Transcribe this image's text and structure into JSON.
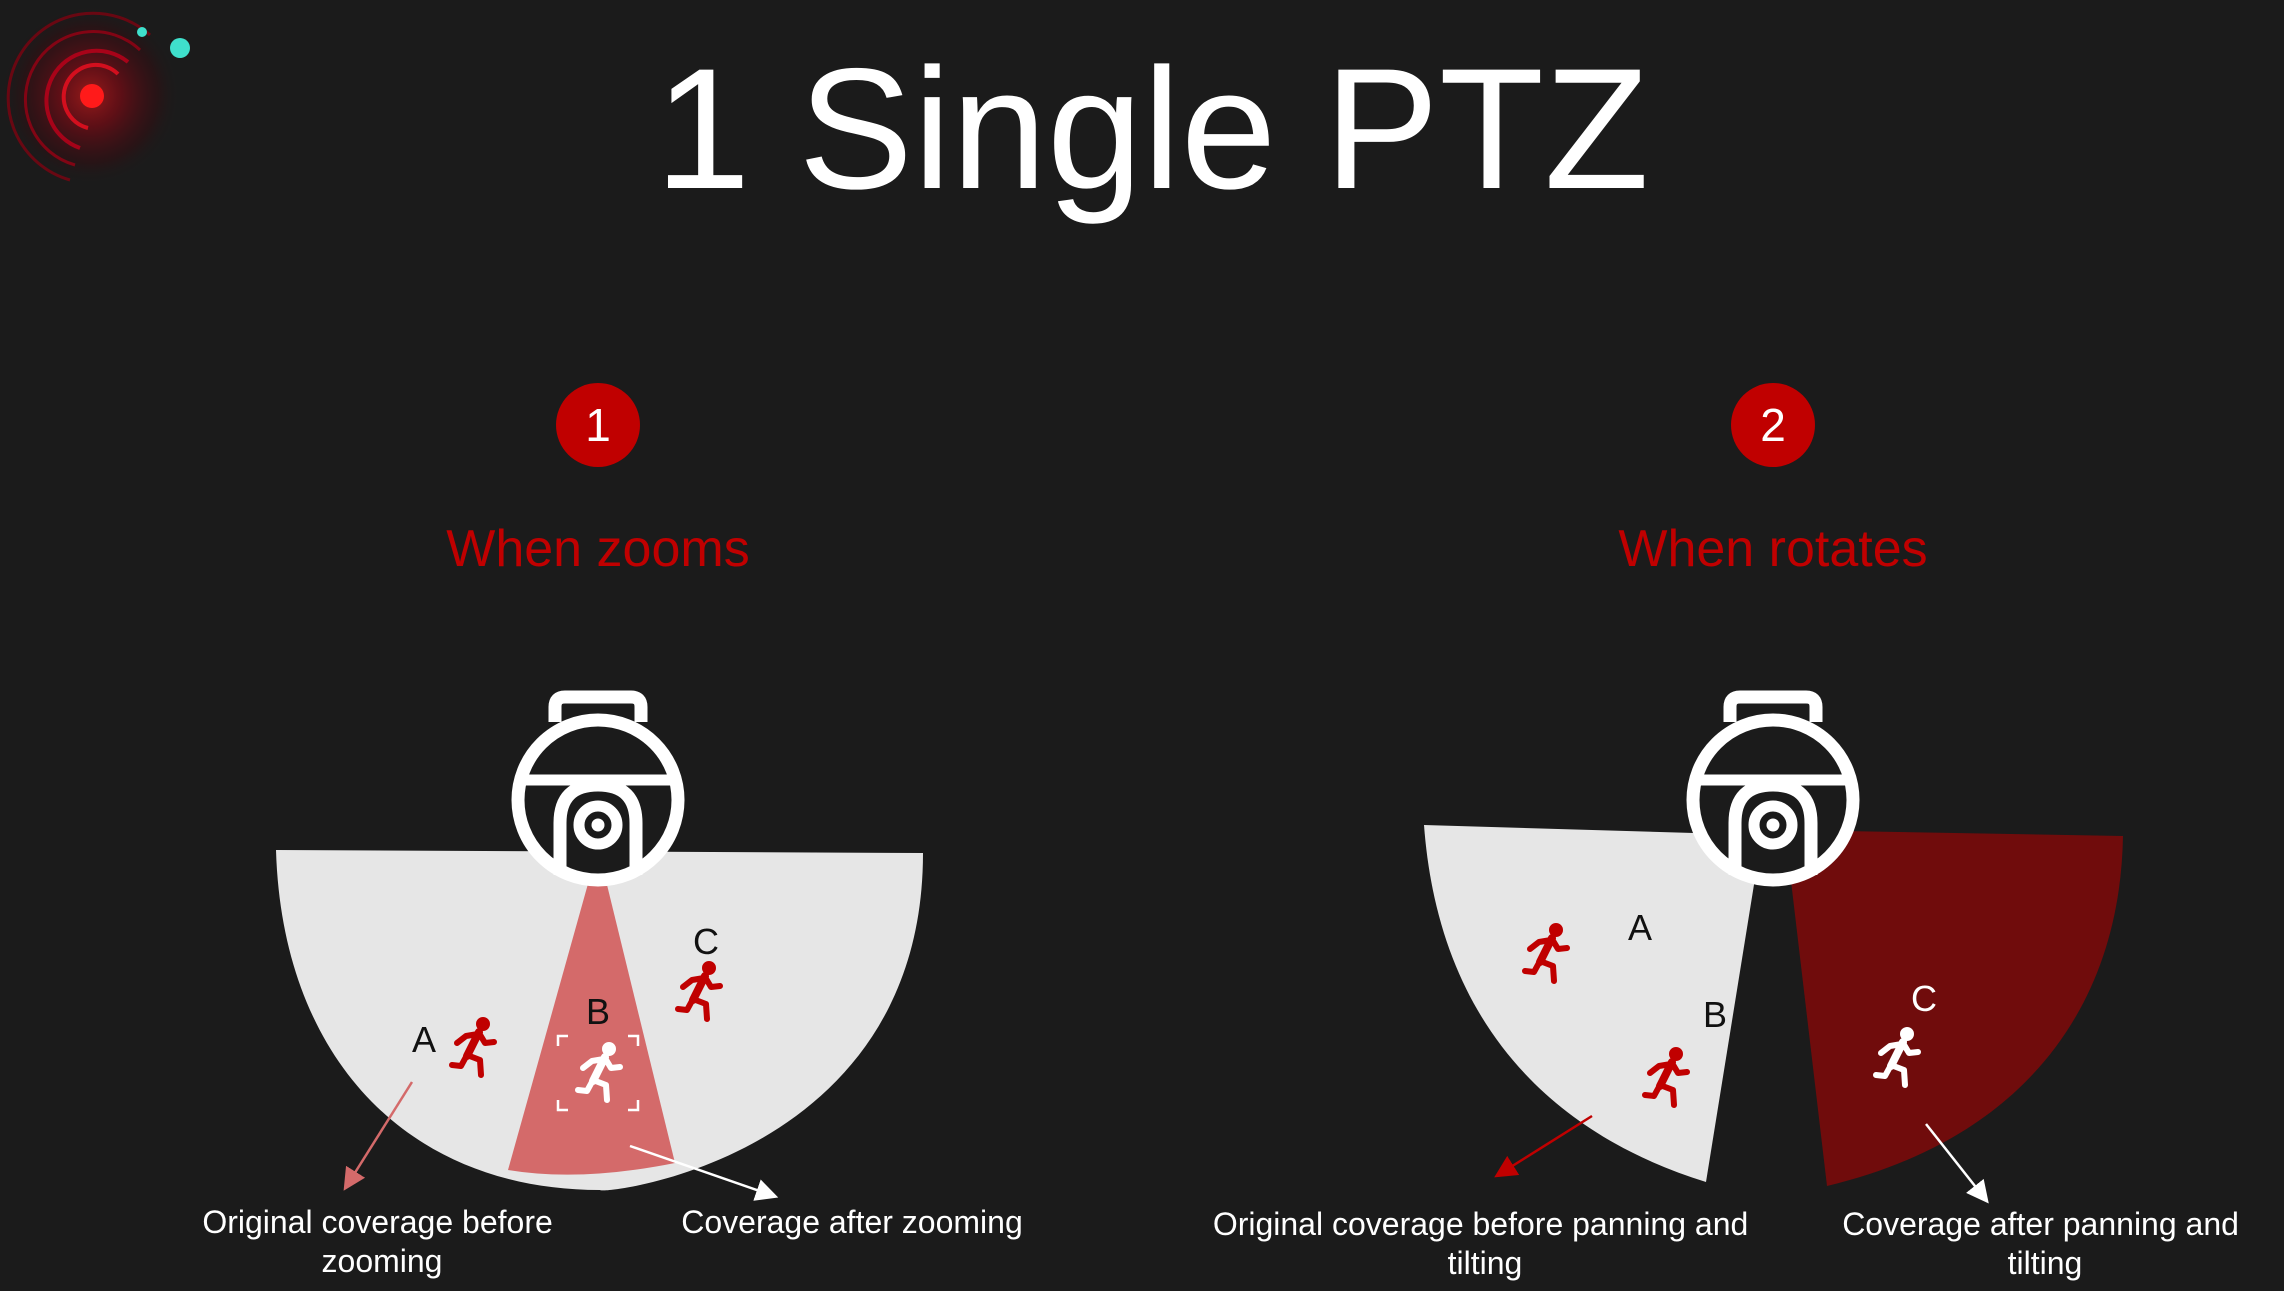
{
  "title": "1 Single PTZ",
  "colors": {
    "background": "#1b1b1b",
    "accent_red": "#c00000",
    "dark_red": "#700c0c",
    "zoom_red": "#d46a6a",
    "coverage_gray": "#e6e6e6",
    "figure_red": "#c00000",
    "teal_dot": "#3fe0cc",
    "white": "#ffffff"
  },
  "panels": [
    {
      "number": "1",
      "heading": "When zooms",
      "labels": {
        "a": "A",
        "b": "B",
        "c": "C"
      },
      "captions": {
        "left": "Original coverage before zooming",
        "right": "Coverage after zooming"
      },
      "icons": [
        "camera-icon",
        "running-person-icon",
        "focus-bracket-icon"
      ]
    },
    {
      "number": "2",
      "heading": "When rotates",
      "labels": {
        "a": "A",
        "b": "B",
        "c": "C"
      },
      "captions": {
        "left": "Original coverage before panning and tilting",
        "right": "Coverage after panning and tilting"
      },
      "icons": [
        "camera-icon",
        "running-person-icon"
      ]
    }
  ],
  "logo": "radar-logo-icon"
}
